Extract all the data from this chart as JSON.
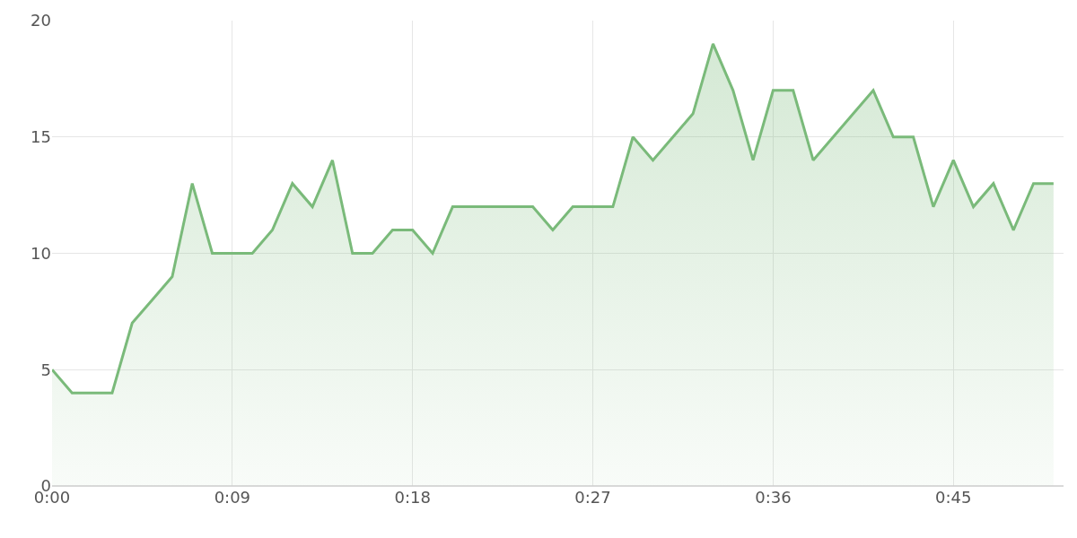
{
  "chart_data": {
    "type": "area",
    "x": [
      0,
      1,
      2,
      3,
      4,
      5,
      6,
      7,
      8,
      9,
      10,
      11,
      12,
      13,
      14,
      15,
      16,
      17,
      18,
      19,
      20,
      21,
      22,
      23,
      24,
      25,
      26,
      27,
      28,
      29,
      30,
      31,
      32,
      33,
      34,
      35,
      36,
      37,
      38,
      39,
      40,
      41,
      42,
      43,
      44,
      45,
      46,
      47,
      48,
      49,
      50
    ],
    "series": [
      {
        "color": "#7aba7a",
        "values": [
          5,
          4,
          4,
          4,
          7,
          8,
          9,
          13,
          10,
          10,
          10,
          11,
          13,
          12,
          14,
          10,
          10,
          11,
          11,
          10,
          12,
          12,
          12,
          12,
          12,
          11,
          12,
          12,
          12,
          15,
          14,
          15,
          16,
          19,
          17,
          14,
          17,
          17,
          14,
          15,
          16,
          17,
          15,
          15,
          12,
          14,
          12,
          13,
          11,
          13,
          13
        ]
      }
    ],
    "xlim": [
      0,
      50.5
    ],
    "xticks": [
      {
        "value": 0,
        "label": "0:00"
      },
      {
        "value": 9,
        "label": "0:09"
      },
      {
        "value": 18,
        "label": "0:18"
      },
      {
        "value": 27,
        "label": "0:27"
      },
      {
        "value": 36,
        "label": "0:36"
      },
      {
        "value": 45,
        "label": "0:45"
      }
    ],
    "ylim": [
      0,
      20
    ],
    "yticks": [
      0,
      5,
      10,
      15,
      20
    ],
    "grid": true,
    "marker": "none",
    "line_style": "solid"
  }
}
